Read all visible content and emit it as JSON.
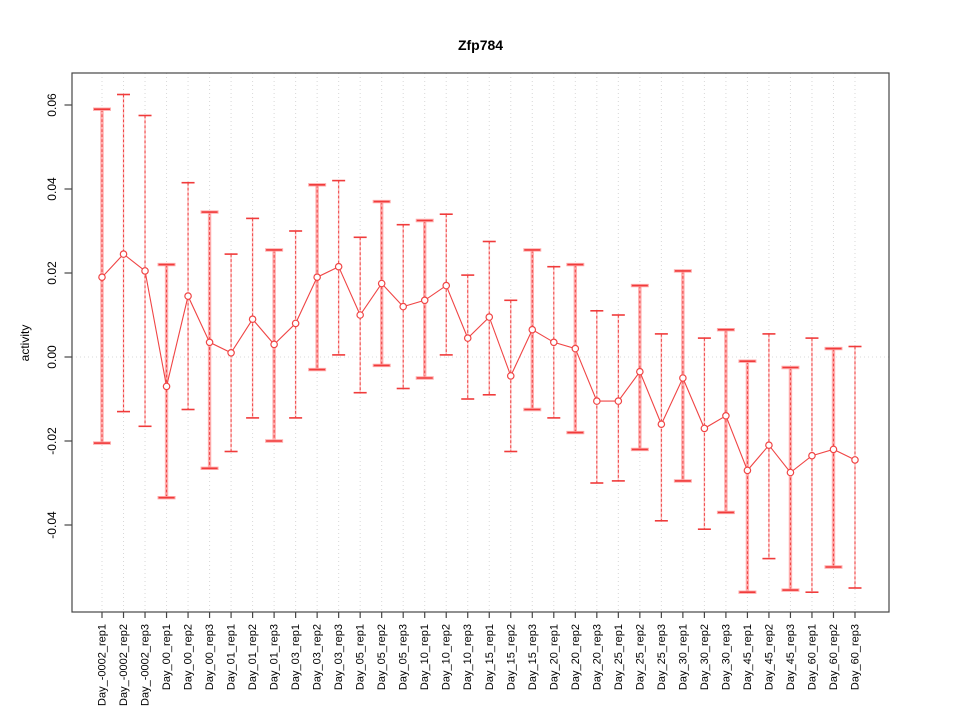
{
  "title": "Zfp784",
  "y_axis_title": "activity",
  "chart_data": {
    "type": "line",
    "title": "Zfp784",
    "xlabel": "",
    "ylabel": "activity",
    "legend": "none",
    "point_style": "open-circle",
    "line_style": "points-connected-with-gaps",
    "error_bars": true,
    "grid": {
      "vertical_dotted_per_category": true,
      "horizontal_dotted_at_zero": true
    },
    "ylim": [
      -0.0607,
      0.0676
    ],
    "ytick_labels": [
      "-0.04",
      "-0.02",
      "0.00",
      "0.02",
      "0.04",
      "0.06"
    ],
    "ytick_values": [
      -0.04,
      -0.02,
      0.0,
      0.02,
      0.04,
      0.06
    ],
    "categories": [
      "Day_-0002_rep1",
      "Day_-0002_rep2",
      "Day_-0002_rep3",
      "Day_00_rep1",
      "Day_00_rep2",
      "Day_00_rep3",
      "Day_01_rep1",
      "Day_01_rep2",
      "Day_01_rep3",
      "Day_03_rep1",
      "Day_03_rep2",
      "Day_03_rep3",
      "Day_05_rep1",
      "Day_05_rep2",
      "Day_05_rep3",
      "Day_10_rep1",
      "Day_10_rep2",
      "Day_10_rep3",
      "Day_15_rep1",
      "Day_15_rep2",
      "Day_15_rep3",
      "Day_20_rep1",
      "Day_20_rep2",
      "Day_20_rep3",
      "Day_25_rep1",
      "Day_25_rep2",
      "Day_25_rep3",
      "Day_30_rep1",
      "Day_30_rep2",
      "Day_30_rep3",
      "Day_45_rep1",
      "Day_45_rep2",
      "Day_45_rep3",
      "Day_60_rep1",
      "Day_60_rep2",
      "Day_60_rep3"
    ],
    "series": [
      {
        "name": "activity",
        "values": [
          0.019,
          0.0245,
          0.0205,
          -0.007,
          0.0145,
          0.0035,
          0.001,
          0.009,
          0.003,
          0.008,
          0.019,
          0.0215,
          0.01,
          0.0175,
          0.012,
          0.0135,
          0.017,
          0.0045,
          0.0095,
          -0.0045,
          0.0065,
          0.0035,
          0.002,
          -0.0105,
          -0.0105,
          -0.0035,
          -0.016,
          -0.005,
          -0.017,
          -0.014,
          -0.027,
          -0.021,
          -0.0275,
          -0.0235,
          -0.022,
          -0.0245
        ]
      }
    ],
    "error_high": [
      0.059,
      0.0625,
      0.0575,
      0.022,
      0.0415,
      0.0345,
      0.0245,
      0.033,
      0.0255,
      0.03,
      0.041,
      0.042,
      0.0285,
      0.037,
      0.0315,
      0.0325,
      0.034,
      0.0195,
      0.0275,
      0.0135,
      0.0255,
      0.0215,
      0.022,
      0.011,
      0.01,
      0.017,
      0.0055,
      0.0205,
      0.0045,
      0.0065,
      -0.001,
      0.0055,
      -0.0025,
      0.0045,
      0.002,
      0.0025
    ],
    "error_low": [
      -0.0205,
      -0.013,
      -0.0165,
      -0.0335,
      -0.0125,
      -0.0265,
      -0.0225,
      -0.0145,
      -0.02,
      -0.0145,
      -0.003,
      0.0005,
      -0.0085,
      -0.002,
      -0.0075,
      -0.005,
      0.0005,
      -0.01,
      -0.009,
      -0.0225,
      -0.0125,
      -0.0145,
      -0.018,
      -0.03,
      -0.0295,
      -0.022,
      -0.039,
      -0.0295,
      -0.041,
      -0.037,
      -0.056,
      -0.048,
      -0.0555,
      -0.056,
      -0.05,
      -0.055
    ],
    "thick_bar_flags": [
      true,
      false,
      false,
      true,
      false,
      true,
      false,
      false,
      true,
      false,
      true,
      false,
      false,
      true,
      false,
      true,
      false,
      false,
      false,
      false,
      true,
      false,
      true,
      false,
      false,
      true,
      false,
      true,
      false,
      true,
      true,
      false,
      true,
      false,
      true,
      false
    ]
  },
  "colors": {
    "series_red": "#f04545",
    "cap_red": "#f03b3b",
    "dash_red": "#ee3535",
    "error_bar_pink": "#ffa3a3",
    "grid_gray": "#d8d8d8",
    "frame_gray": "#454545",
    "background": "#ffffff"
  }
}
